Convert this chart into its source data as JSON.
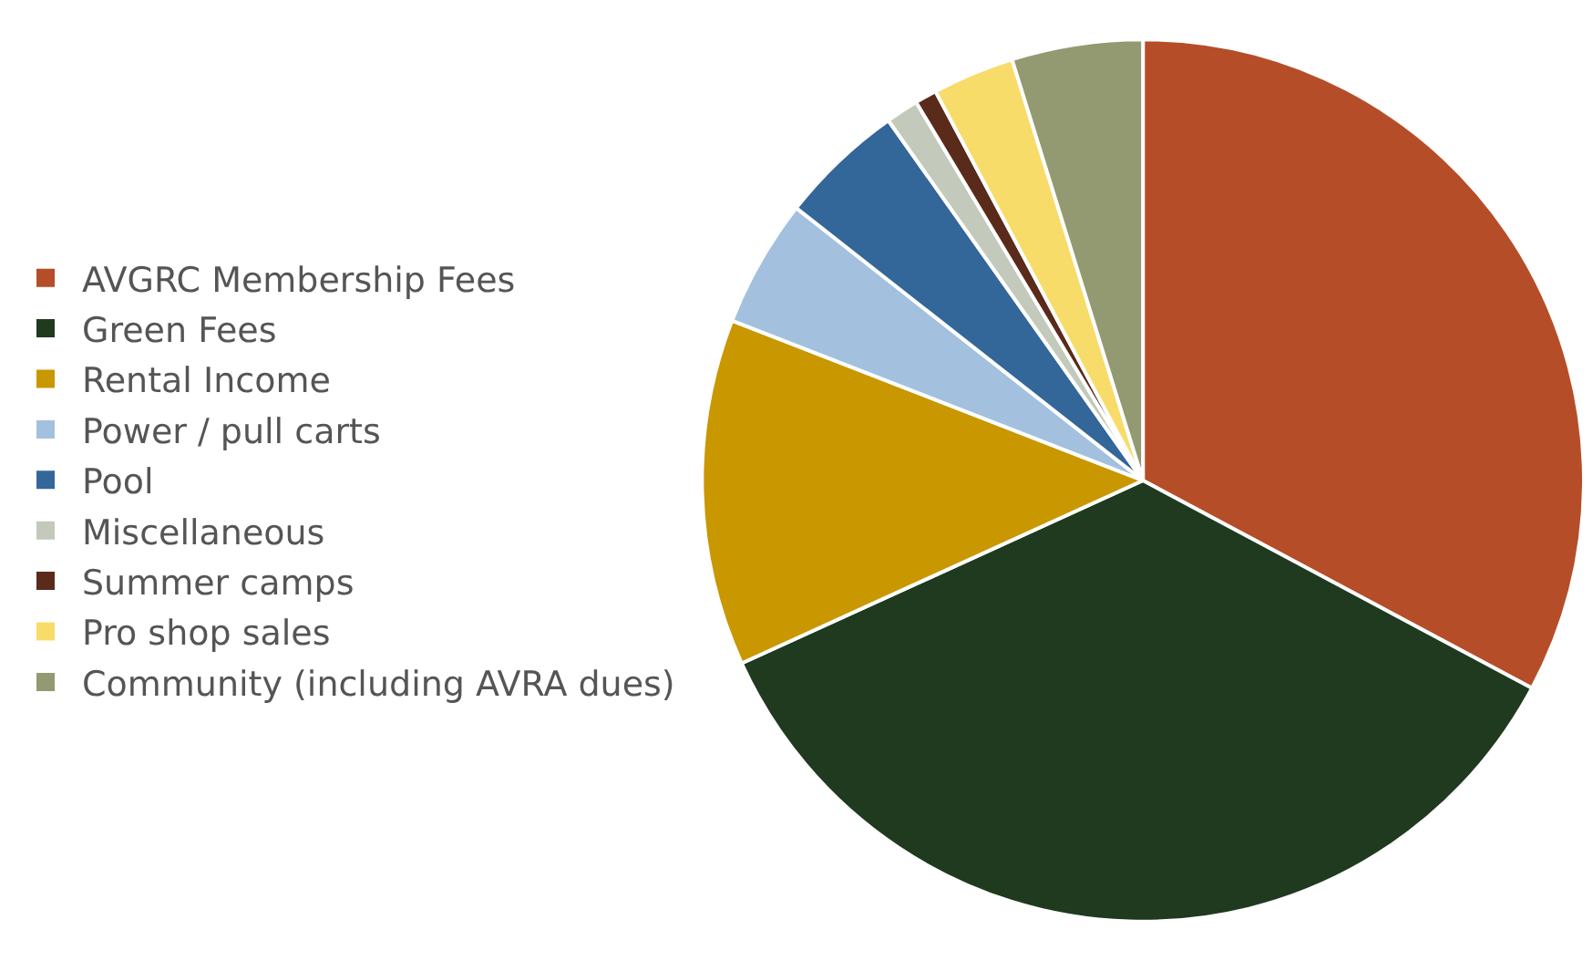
{
  "chart_data": {
    "type": "pie",
    "categories": [
      "AVGRC Membership Fees",
      "Green Fees",
      "Rental Income",
      "Power / pull carts",
      "Pool",
      "Miscellaneous",
      "Summer camps",
      "Pro shop sales",
      "Community (including AVRA dues)"
    ],
    "values": [
      32.8,
      35.4,
      12.7,
      4.7,
      4.6,
      1.2,
      0.8,
      3.0,
      4.8
    ],
    "colors": [
      "#b54e28",
      "#1f3a1e",
      "#c99700",
      "#a3c1df",
      "#336699",
      "#c3c9bb",
      "#5a2a1a",
      "#f8dc6a",
      "#939a72"
    ],
    "legend": "left"
  }
}
